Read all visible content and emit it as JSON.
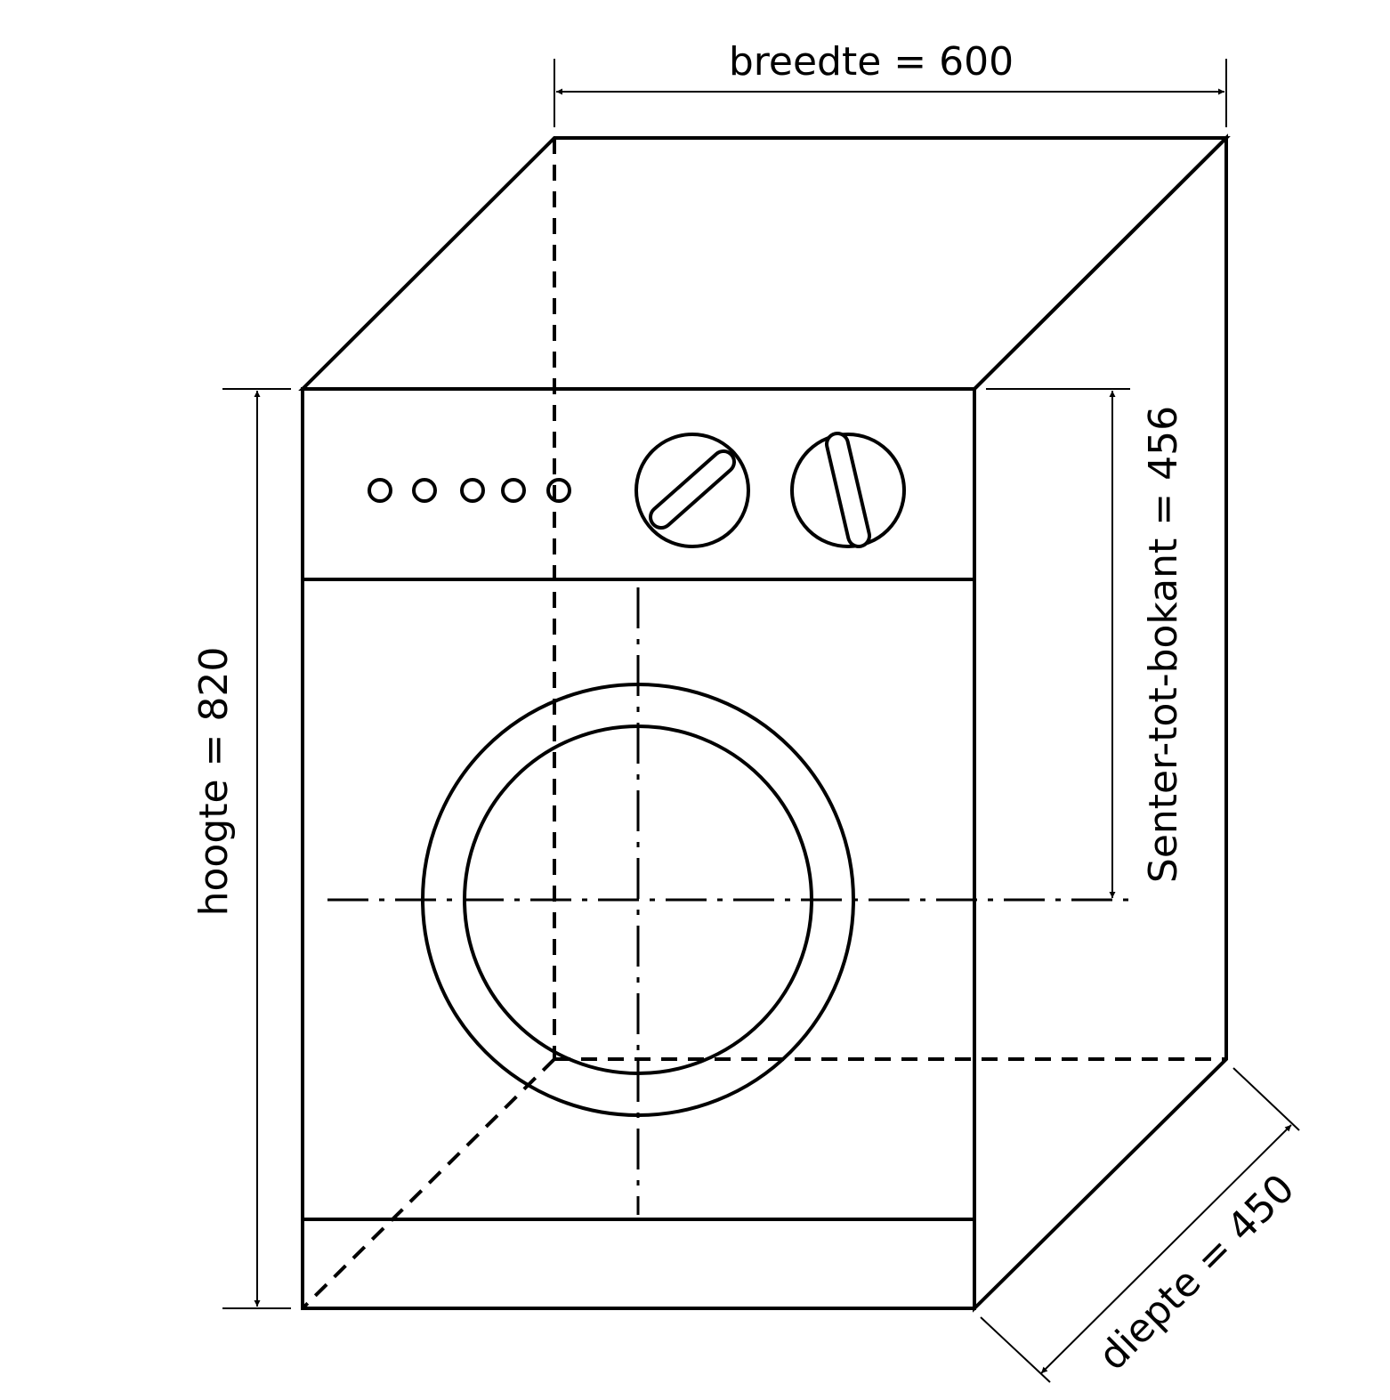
{
  "labels": {
    "width": "breedte = 600",
    "height": "hoogte = 820",
    "center_to_top": "Senter-tot-bokant = 456",
    "depth": "diepte  = 450"
  },
  "colors": {
    "stroke": "#000000",
    "background": "#ffffff"
  }
}
